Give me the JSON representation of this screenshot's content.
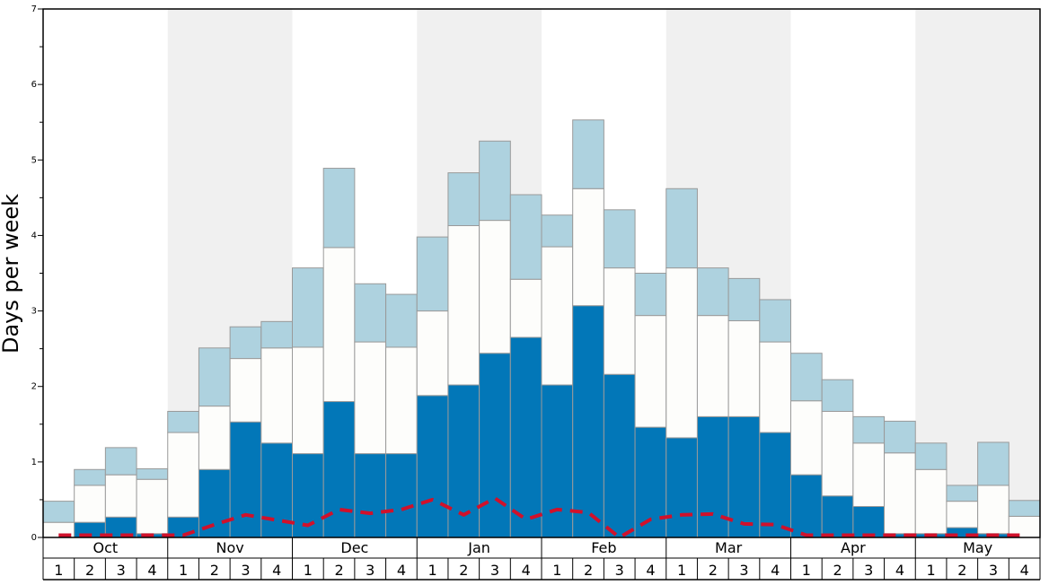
{
  "chart_data": {
    "type": "bar",
    "ylabel": "Days per week",
    "ylim": [
      0,
      7
    ],
    "y_ticks": [
      "0",
      "1",
      "2",
      "3",
      "4",
      "5",
      "6",
      "7"
    ],
    "months": [
      "Oct",
      "Nov",
      "Dec",
      "Jan",
      "Feb",
      "Mar",
      "Apr",
      "May"
    ],
    "week_labels": [
      "1",
      "2",
      "3",
      "4",
      "1",
      "2",
      "3",
      "4",
      "1",
      "2",
      "3",
      "4",
      "1",
      "2",
      "3",
      "4",
      "1",
      "2",
      "3",
      "4",
      "1",
      "2",
      "3",
      "4",
      "1",
      "2",
      "3",
      "4",
      "1",
      "2",
      "3",
      "4"
    ],
    "stacked": true,
    "series": [
      {
        "color": "#0277b8",
        "values": [
          0.0,
          0.2,
          0.27,
          0.05,
          0.27,
          0.9,
          1.53,
          1.25,
          1.11,
          1.8,
          1.11,
          1.11,
          1.88,
          2.02,
          2.44,
          2.65,
          2.02,
          3.07,
          2.16,
          1.46,
          1.32,
          1.6,
          1.6,
          1.39,
          0.83,
          0.55,
          0.41,
          0.05,
          0.05,
          0.13,
          0.05,
          0.0
        ]
      },
      {
        "color": "#fdfdfb",
        "values": [
          0.2,
          0.49,
          0.56,
          0.72,
          1.12,
          0.84,
          0.84,
          1.26,
          1.41,
          2.04,
          1.48,
          1.41,
          1.12,
          2.11,
          1.76,
          0.77,
          1.83,
          1.55,
          1.41,
          1.48,
          2.25,
          1.34,
          1.27,
          1.2,
          0.98,
          1.12,
          0.84,
          1.07,
          0.85,
          0.35,
          0.64,
          0.28
        ]
      },
      {
        "color": "#aed2df",
        "values": [
          0.28,
          0.21,
          0.36,
          0.14,
          0.28,
          0.77,
          0.42,
          0.35,
          1.05,
          1.05,
          0.77,
          0.7,
          0.98,
          0.7,
          1.05,
          1.12,
          0.42,
          0.91,
          0.77,
          0.56,
          1.05,
          0.63,
          0.56,
          0.56,
          0.63,
          0.42,
          0.35,
          0.42,
          0.35,
          0.21,
          0.57,
          0.21
        ]
      }
    ],
    "dashed_line": {
      "color": "#d0112b",
      "values": [
        0.03,
        0.03,
        0.03,
        0.03,
        0.03,
        0.17,
        0.3,
        0.23,
        0.16,
        0.37,
        0.32,
        0.37,
        0.5,
        0.3,
        0.52,
        0.24,
        0.37,
        0.33,
        0.0,
        0.24,
        0.3,
        0.31,
        0.18,
        0.17,
        0.03,
        0.03,
        0.03,
        0.03,
        0.03,
        0.03,
        0.03,
        0.03
      ]
    },
    "band_color": "#f0f0f0",
    "grid": false
  }
}
